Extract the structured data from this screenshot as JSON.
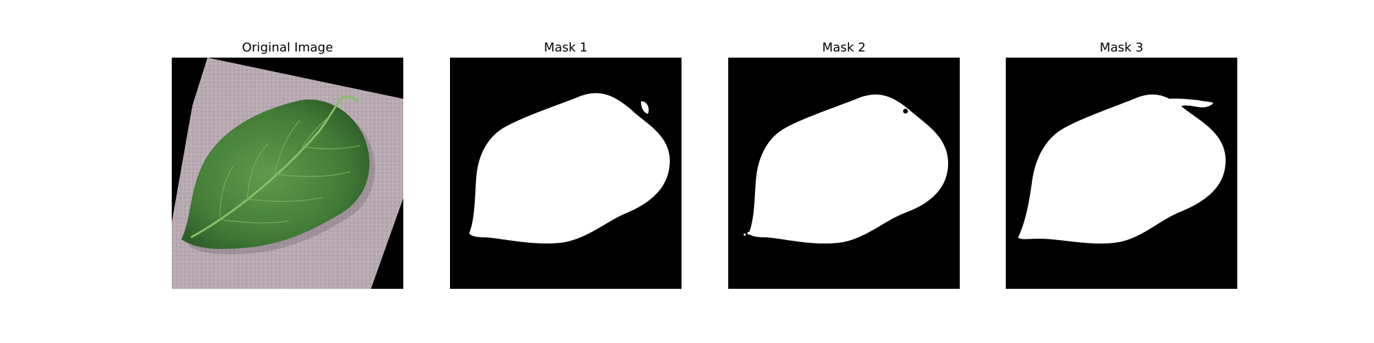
{
  "figure": {
    "panels": [
      {
        "title": "Original Image"
      },
      {
        "title": "Mask 1"
      },
      {
        "title": "Mask 2"
      },
      {
        "title": "Mask 3"
      }
    ]
  },
  "colors": {
    "figure_background": "#ffffff",
    "mask_background": "#000000",
    "mask_foreground": "#ffffff",
    "leaf_green": "#4a8a3e",
    "surface_pinkish_gray": "#b8a9b1"
  }
}
